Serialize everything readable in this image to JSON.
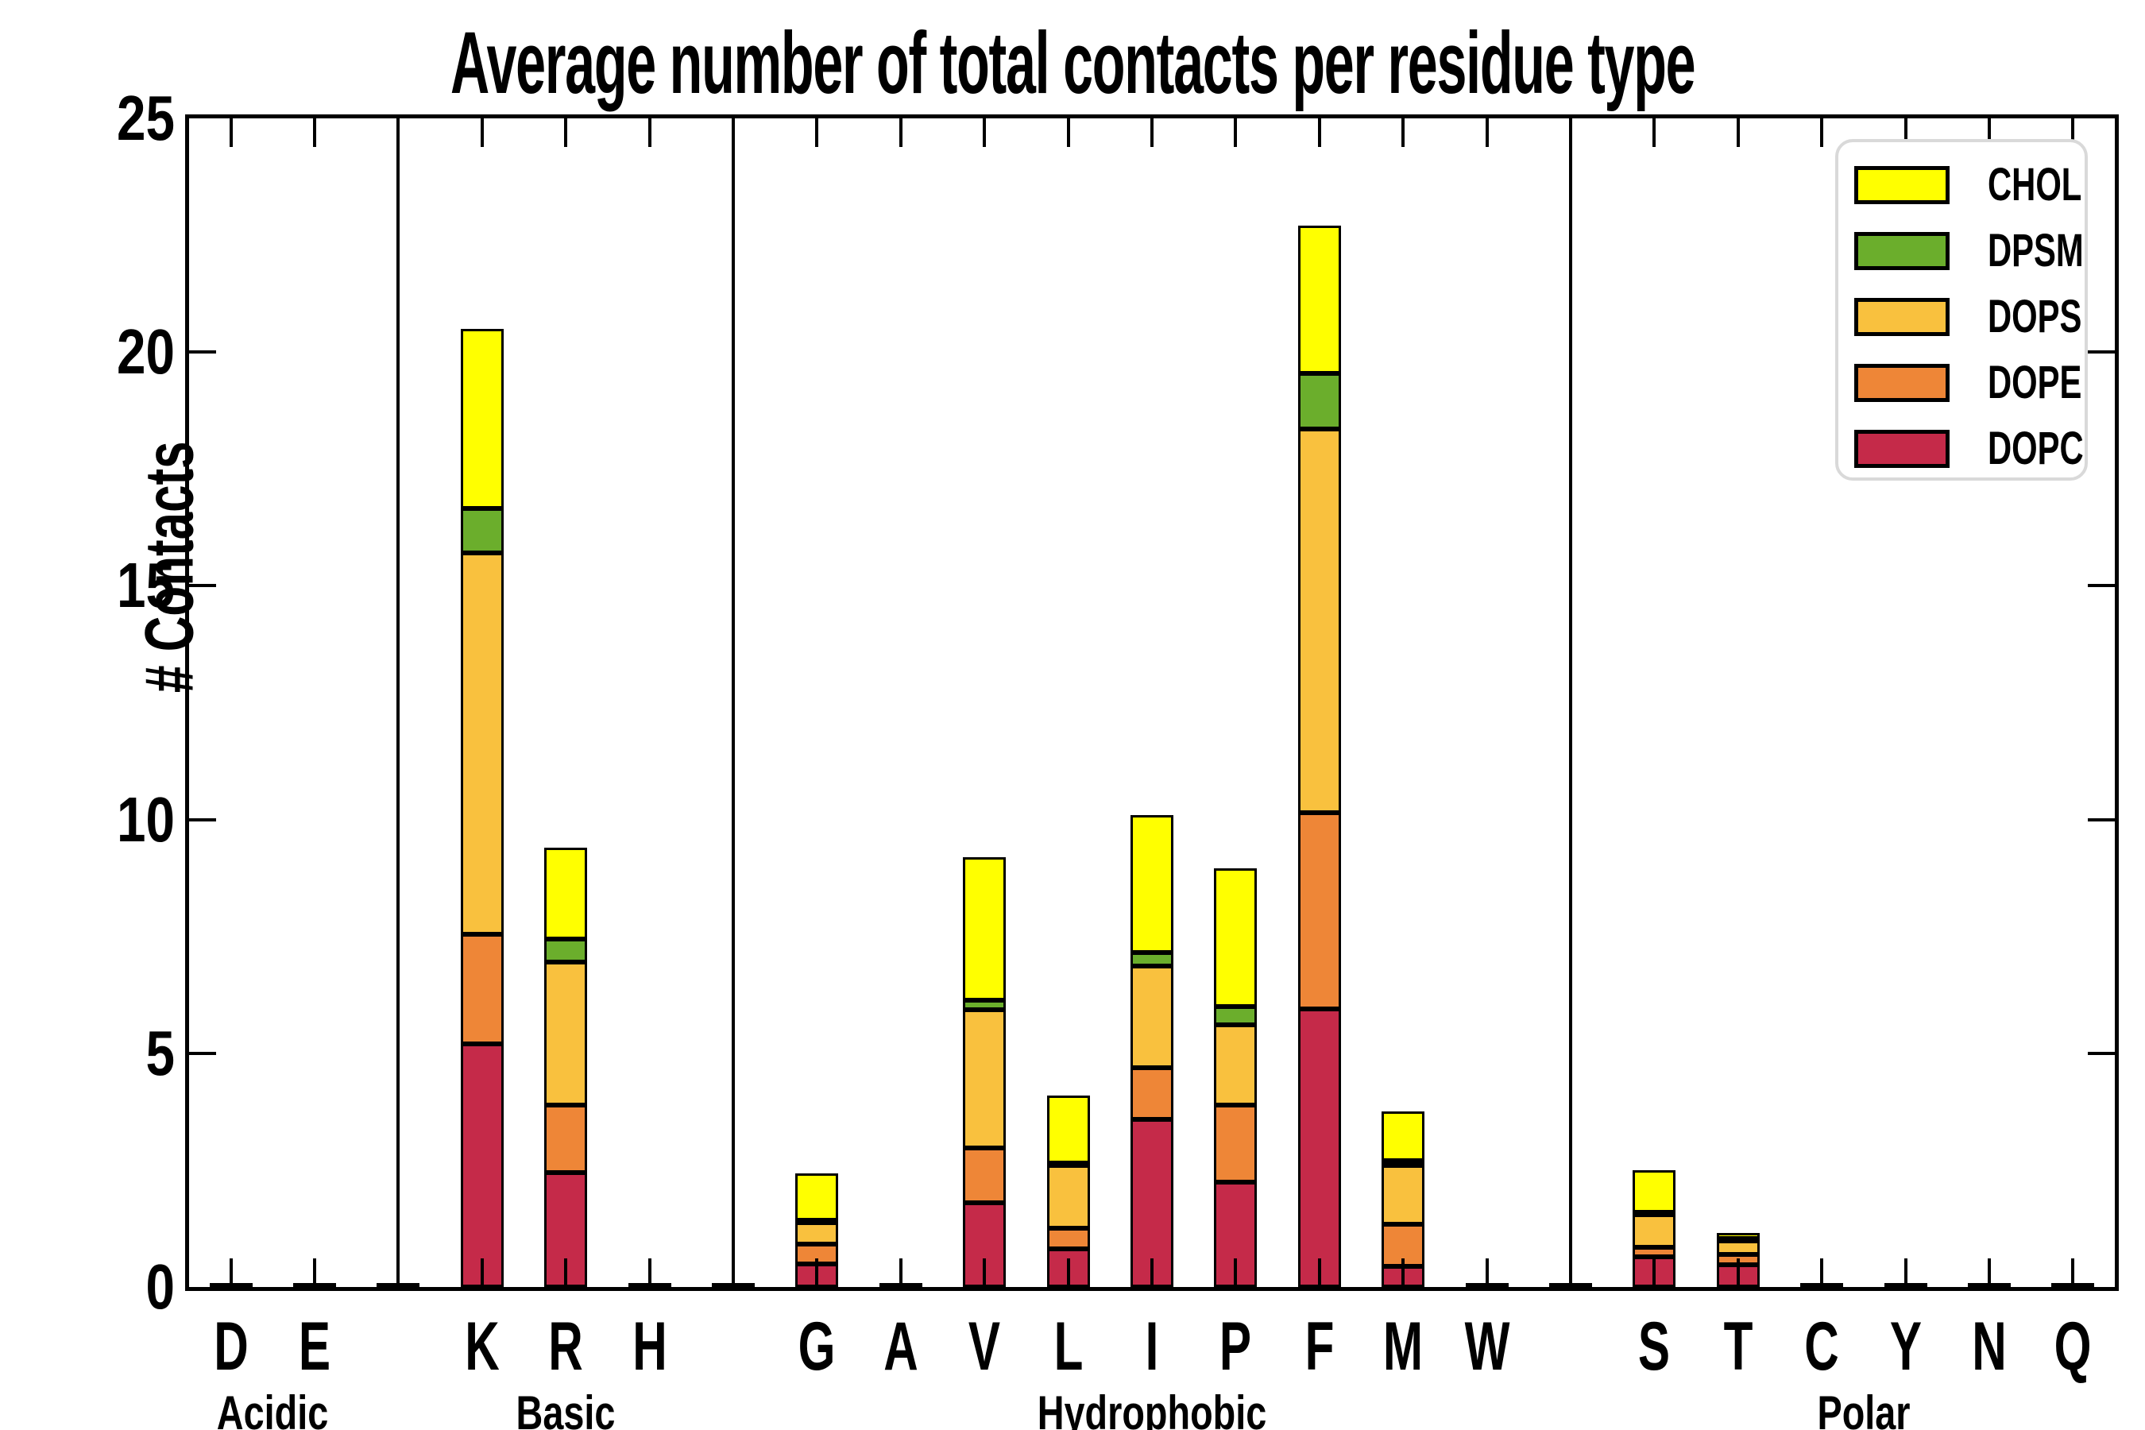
{
  "figure": {
    "title": "Average number of total contacts per residue type",
    "ylabel": "# Contacts"
  },
  "chart_data": {
    "type": "bar",
    "subtype": "stacked-vertical",
    "title": "Average number of total contacts per residue type",
    "xlabel": "",
    "ylabel": "# Contacts",
    "ylim": [
      0,
      25
    ],
    "yticks": [
      0,
      5,
      10,
      15,
      20,
      25
    ],
    "grid": false,
    "legend_position": "upper right",
    "legend_order_top_to_bottom": [
      "CHOL",
      "DPSM",
      "DOPS",
      "DOPE",
      "DOPC"
    ],
    "groups": [
      {
        "name": "Acidic",
        "residues": [
          "D",
          "E"
        ]
      },
      {
        "name": "Basic",
        "residues": [
          "K",
          "R",
          "H"
        ]
      },
      {
        "name": "Hydrophobic",
        "residues": [
          "G",
          "A",
          "V",
          "L",
          "I",
          "P",
          "F",
          "M",
          "W"
        ]
      },
      {
        "name": "Polar",
        "residues": [
          "S",
          "T",
          "C",
          "Y",
          "N",
          "Q"
        ]
      }
    ],
    "categories": [
      "D",
      "E",
      "K",
      "R",
      "H",
      "G",
      "A",
      "V",
      "L",
      "I",
      "P",
      "F",
      "M",
      "W",
      "S",
      "T",
      "C",
      "Y",
      "N",
      "Q"
    ],
    "series": [
      {
        "name": "DOPC",
        "color": "#C52A49",
        "values": [
          0.03,
          0.03,
          5.2,
          2.45,
          0.03,
          0.5,
          0.03,
          1.8,
          0.82,
          3.58,
          2.25,
          5.95,
          0.45,
          0.03,
          0.65,
          0.48,
          0.03,
          0.03,
          0.03,
          0.03
        ]
      },
      {
        "name": "DOPE",
        "color": "#EE8637",
        "values": [
          0,
          0,
          2.35,
          1.45,
          0,
          0.42,
          0,
          1.17,
          0.44,
          1.11,
          1.65,
          4.2,
          0.9,
          0,
          0.2,
          0.21,
          0,
          0,
          0,
          0
        ]
      },
      {
        "name": "DOPS",
        "color": "#F9C13E",
        "values": [
          0,
          0,
          8.15,
          3.05,
          0,
          0.46,
          0,
          2.96,
          1.34,
          2.17,
          1.7,
          8.2,
          1.25,
          0,
          0.72,
          0.31,
          0,
          0,
          0,
          0
        ]
      },
      {
        "name": "DPSM",
        "color": "#6BAE2C",
        "values": [
          0,
          0,
          0.95,
          0.5,
          0,
          0.05,
          0,
          0.2,
          0.05,
          0.29,
          0.4,
          1.2,
          0.1,
          0,
          0.03,
          0.03,
          0,
          0,
          0,
          0
        ]
      },
      {
        "name": "CHOL",
        "color": "#FFFF00",
        "values": [
          0,
          0,
          3.85,
          1.95,
          0,
          1.0,
          0,
          3.07,
          1.45,
          2.95,
          2.95,
          3.15,
          1.05,
          0,
          0.9,
          0.12,
          0,
          0,
          0,
          0
        ]
      }
    ],
    "totals": {
      "K": 20.5,
      "R": 9.4,
      "G": 2.43,
      "V": 9.2,
      "L": 4.1,
      "I": 10.1,
      "P": 8.95,
      "F": 22.7,
      "M": 3.75,
      "S": 2.5,
      "T": 1.15,
      "D": 0.03,
      "E": 0.03,
      "H": 0.03,
      "A": 0.03,
      "W": 0.03,
      "C": 0.03,
      "Y": 0.03,
      "N": 0.03,
      "Q": 0.03
    }
  }
}
